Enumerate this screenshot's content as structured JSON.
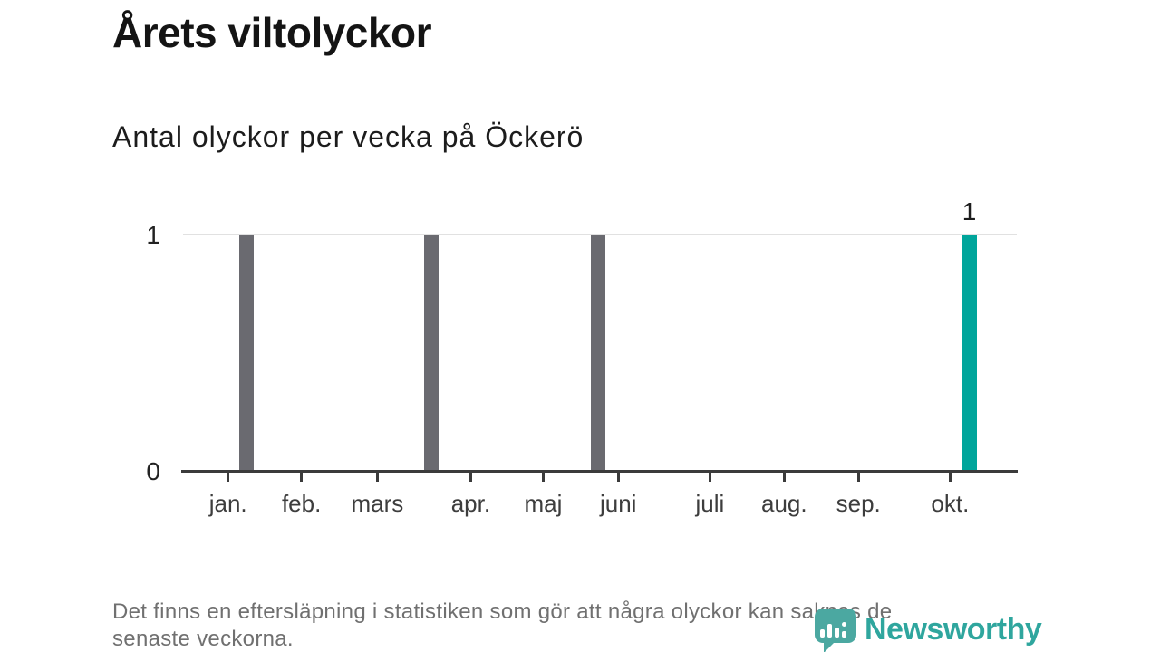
{
  "header": {
    "title": "Årets viltolyckor",
    "subtitle": "Antal olyckor per vecka på Öckerö"
  },
  "chart_data": {
    "type": "bar",
    "title": "Årets viltolyckor",
    "subtitle": "Antal olyckor per vecka på Öckerö",
    "x_unit": "vecka",
    "ylim": [
      0,
      1
    ],
    "yticks": [
      0,
      1
    ],
    "grid": {
      "y_gridline_at": 1,
      "color": "#e1e1e1"
    },
    "axis_color": "#3b3b3b",
    "bar_colors": {
      "default": "#6a6a70",
      "highlight": "#00a59b"
    },
    "months": [
      {
        "label": "jan.",
        "pos": 0.054
      },
      {
        "label": "feb.",
        "pos": 0.142
      },
      {
        "label": "mars",
        "pos": 0.233
      },
      {
        "label": "apr.",
        "pos": 0.345
      },
      {
        "label": "maj",
        "pos": 0.432
      },
      {
        "label": "juni",
        "pos": 0.522
      },
      {
        "label": "juli",
        "pos": 0.632
      },
      {
        "label": "aug.",
        "pos": 0.721
      },
      {
        "label": "sep.",
        "pos": 0.81
      },
      {
        "label": "okt.",
        "pos": 0.92
      }
    ],
    "bars": [
      {
        "value": 1,
        "pos": 0.076,
        "highlight": false
      },
      {
        "value": 1,
        "pos": 0.298,
        "highlight": false
      },
      {
        "value": 1,
        "pos": 0.498,
        "highlight": false
      },
      {
        "value": 1,
        "pos": 0.943,
        "highlight": true,
        "label": "1"
      }
    ]
  },
  "footnote": {
    "lines": [
      "Det finns en eftersläpning i statistiken som gör att några olyckor kan saknas de",
      "senaste veckorna."
    ]
  },
  "branding": {
    "logo_text": "Newsworthy",
    "mark_color": "#4ba8a1",
    "text_color": "#2fa69e"
  }
}
